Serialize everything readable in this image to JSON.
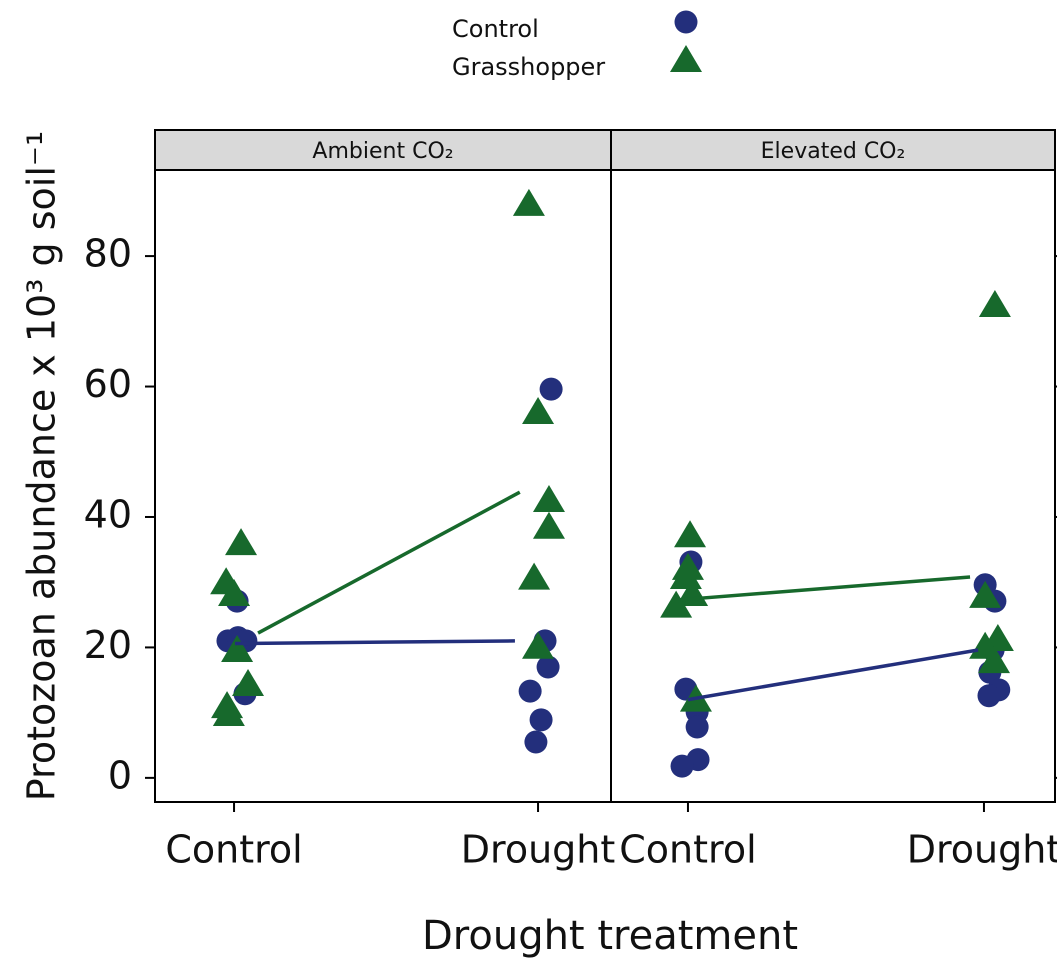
{
  "chart_data": {
    "type": "scatter",
    "xlabel": "Drought treatment",
    "ylabel": "Protozoan abundance x 10³ g soil⁻¹",
    "xlim": [
      0.74,
      2.24
    ],
    "xticks": [
      {
        "value": 1,
        "label": "Control"
      },
      {
        "value": 2,
        "label": "Drought"
      }
    ],
    "ylim": [
      -3.7,
      93.2
    ],
    "yticks": [
      0,
      20,
      40,
      60,
      80
    ],
    "legend": "top",
    "panels": [
      {
        "title": "Ambient CO₂",
        "series": [
          {
            "name": "Control",
            "color": "#232f7c",
            "marker": "circle",
            "x": [
              0.98,
              1.01,
              1.013,
              1.039,
              1.036,
              2.043,
              2.023,
              2.033,
              1.974,
              2.01,
              1.993
            ],
            "y": [
              21.0,
              27.1,
              21.5,
              21.0,
              12.9,
              59.6,
              21.0,
              17.0,
              13.3,
              8.9,
              5.5
            ],
            "mean_x": [
              1.003,
              1.924
            ],
            "mean_y": [
              20.6,
              21.0
            ]
          },
          {
            "name": "Grasshopper",
            "color": "#17692c",
            "marker": "triangle",
            "x": [
              1.023,
              0.974,
              1.0,
              1.01,
              1.046,
              0.977,
              0.983,
              1.97,
              2.0,
              2.036,
              2.036,
              1.987,
              2.0
            ],
            "y": [
              36.0,
              30.0,
              28.2,
              19.6,
              14.4,
              11.0,
              9.8,
              88.0,
              56.1,
              42.6,
              38.5,
              30.7,
              20.1
            ],
            "mean_x": [
              1.079,
              1.94
            ],
            "mean_y": [
              22.2,
              43.8
            ]
          }
        ]
      },
      {
        "title": "Elevated CO₂",
        "series": [
          {
            "name": "Control",
            "color": "#232f7c",
            "marker": "circle",
            "x": [
              1.01,
              0.993,
              1.031,
              1.031,
              1.034,
              0.98,
              2.004,
              2.037,
              2.031,
              2.02,
              2.05,
              2.017
            ],
            "y": [
              33.1,
              13.6,
              10.1,
              7.8,
              2.8,
              1.8,
              29.6,
              27.1,
              19.6,
              16.2,
              13.5,
              12.6
            ],
            "mean_x": [
              1.0,
              1.98
            ],
            "mean_y": [
              12.0,
              19.6
            ]
          },
          {
            "name": "Grasshopper",
            "color": "#17692c",
            "marker": "triangle",
            "x": [
              1.007,
              1.0,
              0.993,
              1.014,
              0.96,
              1.027,
              2.037,
              2.004,
              2.047,
              2.004,
              2.034
            ],
            "y": [
              37.2,
              32.2,
              30.8,
              28.2,
              26.4,
              12.0,
              72.5,
              27.9,
              21.3,
              20.1,
              17.9
            ],
            "mean_x": [
              0.973,
              1.953
            ],
            "mean_y": [
              27.3,
              30.8
            ]
          }
        ]
      }
    ]
  }
}
